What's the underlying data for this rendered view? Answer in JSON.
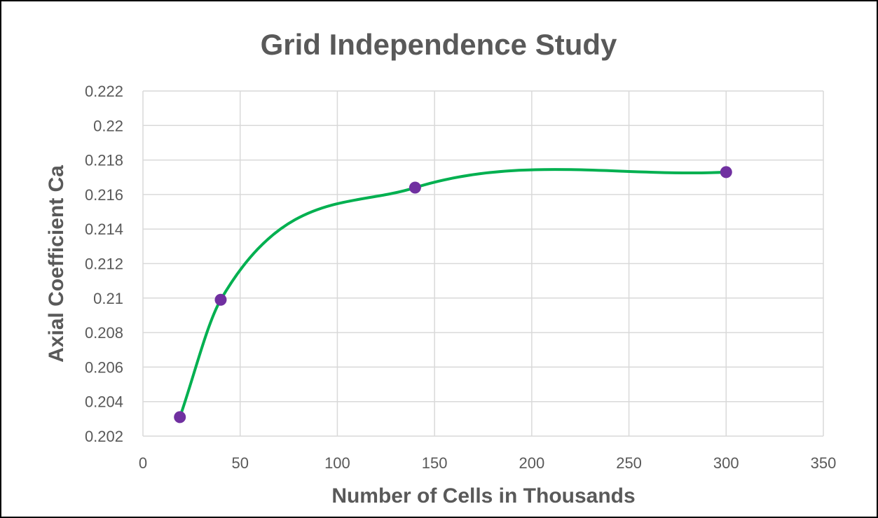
{
  "chart_data": {
    "type": "scatter",
    "title": "Grid Independence Study",
    "xlabel": "Number of Cells in Thousands",
    "ylabel": "Axial Coefficient Ca",
    "xlim": [
      0,
      350
    ],
    "ylim": [
      0.202,
      0.222
    ],
    "xticks": [
      "0",
      "50",
      "100",
      "150",
      "200",
      "250",
      "300",
      "350"
    ],
    "yticks": [
      "0.202",
      "0.204",
      "0.206",
      "0.208",
      "0.21",
      "0.212",
      "0.214",
      "0.216",
      "0.218",
      "0.22",
      "0.222"
    ],
    "grid": true,
    "smooth_line": true,
    "series": [
      {
        "x": [
          19,
          40,
          140,
          300
        ],
        "y": [
          0.2031,
          0.2099,
          0.2164,
          0.2173
        ]
      }
    ],
    "colors": {
      "line": "#00b050",
      "marker": "#7030a0",
      "grid": "#d9d9d9",
      "text": "#595959"
    }
  }
}
